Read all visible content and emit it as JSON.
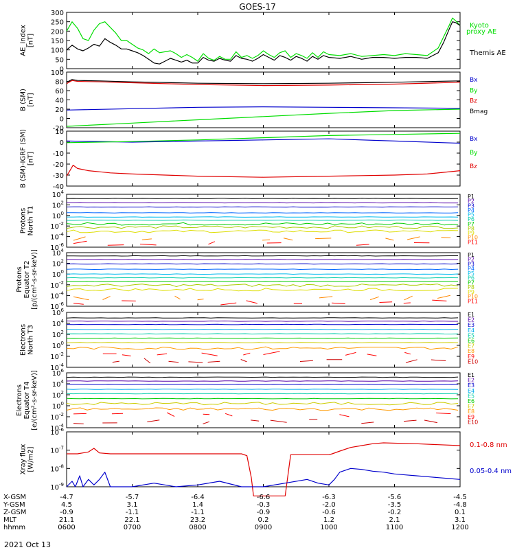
{
  "title": "GOES-17",
  "date": "2021 Oct 13",
  "colors": {
    "black": "#000000",
    "red": "#e00000",
    "green": "#00dd00",
    "blue": "#0000cc",
    "p": [
      "#000000",
      "#5500aa",
      "#0000cc",
      "#0066ff",
      "#00bbee",
      "#00ccaa",
      "#00cc00",
      "#aacc00",
      "#dddd00",
      "#ff8800",
      "#ff0000"
    ],
    "e": [
      "#000000",
      "#5500aa",
      "#0000cc",
      "#00aaee",
      "#00ccaa",
      "#00cc00",
      "#cccc00",
      "#ff9900",
      "#ff0000",
      "#cc0000"
    ]
  },
  "chart_data": [
    {
      "type": "line",
      "ylabel": "AE_index\n[nT]",
      "ylim": [
        0,
        300
      ],
      "yticks": [
        "0",
        "50",
        "100",
        "150",
        "200",
        "250",
        "300"
      ],
      "legend": [
        {
          "text": "Kyoto",
          "color": "green"
        },
        {
          "text": "proxy AE",
          "color": "green"
        },
        {
          "text": "Themis AE",
          "color": "black"
        }
      ],
      "series": [
        {
          "name": "Kyoto proxy AE",
          "color": "green",
          "x": [
            600,
            605,
            610,
            615,
            620,
            625,
            630,
            635,
            640,
            645,
            650,
            655,
            700,
            705,
            710,
            715,
            720,
            725,
            730,
            735,
            740,
            745,
            750,
            755,
            800,
            805,
            810,
            815,
            820,
            825,
            830,
            835,
            840,
            845,
            850,
            855,
            900,
            905,
            910,
            915,
            920,
            925,
            930,
            935,
            940,
            945,
            950,
            955,
            1000,
            1010,
            1020,
            1030,
            1040,
            1050,
            1100,
            1110,
            1120,
            1130,
            1140,
            1145,
            1150,
            1153,
            1156,
            1200
          ],
          "y": [
            200,
            250,
            215,
            160,
            150,
            205,
            240,
            250,
            220,
            190,
            150,
            150,
            130,
            110,
            100,
            80,
            105,
            85,
            90,
            95,
            80,
            60,
            75,
            60,
            40,
            80,
            55,
            45,
            65,
            50,
            50,
            90,
            60,
            70,
            55,
            70,
            95,
            75,
            60,
            85,
            95,
            60,
            80,
            70,
            55,
            85,
            60,
            90,
            75,
            70,
            80,
            65,
            70,
            75,
            70,
            80,
            75,
            70,
            110,
            170,
            230,
            270,
            255,
            230
          ]
        },
        {
          "name": "Themis AE",
          "color": "black",
          "x": [
            600,
            605,
            610,
            615,
            620,
            625,
            630,
            635,
            640,
            645,
            650,
            655,
            700,
            705,
            710,
            715,
            720,
            725,
            730,
            735,
            740,
            745,
            750,
            755,
            800,
            805,
            810,
            815,
            820,
            825,
            830,
            835,
            840,
            845,
            850,
            855,
            900,
            905,
            910,
            915,
            920,
            925,
            930,
            935,
            940,
            945,
            950,
            955,
            1000,
            1010,
            1020,
            1030,
            1040,
            1050,
            1100,
            1110,
            1120,
            1130,
            1140,
            1145,
            1150,
            1153,
            1156,
            1200
          ],
          "y": [
            100,
            125,
            105,
            95,
            110,
            130,
            120,
            160,
            140,
            125,
            105,
            105,
            95,
            85,
            70,
            50,
            30,
            25,
            40,
            55,
            45,
            35,
            45,
            30,
            30,
            60,
            45,
            40,
            55,
            45,
            40,
            70,
            55,
            50,
            40,
            55,
            75,
            60,
            45,
            70,
            60,
            45,
            65,
            55,
            40,
            65,
            50,
            70,
            60,
            55,
            65,
            50,
            60,
            60,
            55,
            60,
            60,
            55,
            85,
            140,
            210,
            250,
            245,
            230
          ]
        }
      ]
    },
    {
      "type": "line",
      "ylabel": "B (SM)\n[nT]",
      "ylim": [
        -20,
        100
      ],
      "yticks": [
        "-20",
        "0",
        "20",
        "40",
        "60",
        "80",
        "100"
      ],
      "legend": [
        {
          "text": "Bx",
          "color": "blue"
        },
        {
          "text": "By",
          "color": "green"
        },
        {
          "text": "Bz",
          "color": "red"
        },
        {
          "text": "Bmag",
          "color": "black"
        }
      ],
      "series": [
        {
          "name": "Bx",
          "color": "blue",
          "x": [
            600,
            700,
            800,
            900,
            1000,
            1100,
            1200
          ],
          "y": [
            18,
            21,
            24,
            25,
            24,
            23,
            22
          ]
        },
        {
          "name": "By",
          "color": "green",
          "x": [
            600,
            700,
            800,
            900,
            1000,
            1100,
            1200
          ],
          "y": [
            -17,
            -10,
            -3,
            4,
            11,
            17,
            20
          ]
        },
        {
          "name": "Bz",
          "color": "red",
          "x": [
            600,
            605,
            610,
            630,
            700,
            800,
            900,
            1000,
            1100,
            1200
          ],
          "y": [
            75,
            82,
            80,
            79,
            77,
            73,
            71,
            72,
            74,
            78
          ]
        },
        {
          "name": "Bmag",
          "color": "black",
          "x": [
            600,
            605,
            610,
            630,
            700,
            800,
            900,
            1000,
            1100,
            1200
          ],
          "y": [
            78,
            84,
            82,
            81,
            79,
            76,
            75,
            76,
            78,
            81
          ]
        }
      ]
    },
    {
      "type": "line",
      "ylabel": "B (SM)-IGRF (SM)\n[nT]",
      "ylim": [
        -40,
        10
      ],
      "yticks": [
        "-40",
        "-30",
        "-20",
        "-10",
        "0",
        "10"
      ],
      "legend": [
        {
          "text": "Bx",
          "color": "blue"
        },
        {
          "text": "By",
          "color": "green"
        },
        {
          "text": "Bz",
          "color": "red"
        }
      ],
      "series": [
        {
          "name": "Bx",
          "color": "blue",
          "x": [
            600,
            700,
            800,
            900,
            1000,
            1100,
            1200
          ],
          "y": [
            1,
            0,
            1,
            2,
            3,
            1,
            -1
          ]
        },
        {
          "name": "By",
          "color": "green",
          "x": [
            600,
            700,
            800,
            900,
            1000,
            1100,
            1200
          ],
          "y": [
            -0.5,
            0.5,
            2,
            4,
            6,
            7,
            8
          ]
        },
        {
          "name": "Bz",
          "color": "red",
          "x": [
            600,
            603,
            606,
            610,
            615,
            620,
            630,
            640,
            700,
            730,
            800,
            830,
            900,
            930,
            1000,
            1030,
            1100,
            1130,
            1200
          ],
          "y": [
            -31,
            -26,
            -21,
            -24,
            -25,
            -26,
            -27,
            -28,
            -29,
            -30,
            -31,
            -31.5,
            -32,
            -31.5,
            -31,
            -30.5,
            -30,
            -29,
            -26
          ]
        }
      ]
    },
    {
      "type": "line",
      "ylabel": "Protons\nNorth T1",
      "log": true,
      "ylim": [
        -6,
        4
      ],
      "yticks": [
        {
          "exp": -6
        },
        {
          "exp": -4
        },
        {
          "exp": -2
        },
        {
          "exp": 0
        },
        {
          "exp": 2
        },
        {
          "exp": 4
        }
      ],
      "legend": [
        "P1",
        "P2",
        "P3",
        "P4",
        "P5",
        "P6",
        "P7",
        "P8",
        "P9",
        "P10",
        "P11"
      ],
      "levels": [
        3.2,
        2.4,
        1.6,
        0.5,
        -0.3,
        -0.9,
        -1.6,
        -2.2,
        -3.0,
        -4.3,
        -5.2
      ]
    },
    {
      "type": "line",
      "ylabel": "Protons\nEquator T2\n[p/(cm²-s-sr-keV)]",
      "log": true,
      "ylim": [
        -6,
        4
      ],
      "yticks": [
        {
          "exp": -6
        },
        {
          "exp": -4
        },
        {
          "exp": -2
        },
        {
          "exp": 0
        },
        {
          "exp": 2
        },
        {
          "exp": 4
        }
      ],
      "legend": [
        "P1",
        "P2",
        "P3",
        "P4",
        "P5",
        "P6",
        "P7",
        "P8",
        "P9",
        "P10",
        "P11"
      ],
      "levels": [
        3.4,
        2.7,
        1.9,
        0.9,
        0.0,
        -0.7,
        -1.4,
        -2.1,
        -2.9,
        -4.4,
        -5.3
      ]
    },
    {
      "type": "line",
      "ylabel": "Electrons\nNorth T3",
      "log": true,
      "ylim": [
        -4,
        6
      ],
      "yticks": [
        {
          "exp": -4
        },
        {
          "exp": -2
        },
        {
          "exp": 0
        },
        {
          "exp": 2
        },
        {
          "exp": 4
        },
        {
          "exp": 6
        }
      ],
      "legend": [
        "E1",
        "E2",
        "E3",
        "E4",
        "E5",
        "E6",
        "E7",
        "E8",
        "E9",
        "E10"
      ],
      "levels": [
        5.0,
        4.4,
        3.8,
        2.9,
        2.1,
        1.3,
        0.5,
        -0.5,
        -1.5,
        -2.8
      ]
    },
    {
      "type": "line",
      "ylabel": "Electrons\nEquator T4\n[e/(cm²-s-sr-keV)]",
      "log": true,
      "ylim": [
        -4,
        6
      ],
      "yticks": [
        {
          "exp": -4
        },
        {
          "exp": -2
        },
        {
          "exp": 0
        },
        {
          "exp": 2
        },
        {
          "exp": 4
        },
        {
          "exp": 6
        }
      ],
      "legend": [
        "E1",
        "E2",
        "E3",
        "E4",
        "E5",
        "E6",
        "E7",
        "E8",
        "E9",
        "E10"
      ],
      "levels": [
        5.2,
        4.5,
        3.9,
        3.0,
        2.2,
        1.3,
        0.4,
        -0.6,
        -1.6,
        -2.9
      ]
    },
    {
      "type": "line",
      "ylabel": "Xray flux\n[W/m2]",
      "log": true,
      "ylim": [
        -9,
        -6
      ],
      "yticks": [
        {
          "exp": -9
        },
        {
          "exp": -8
        },
        {
          "exp": -7
        },
        {
          "exp": -6
        }
      ],
      "legend": [
        {
          "text": "0.1-0.8 nm",
          "color": "red"
        },
        {
          "text": "0.05-0.4 nm",
          "color": "blue"
        }
      ],
      "series": [
        {
          "name": "0.1-0.8 nm",
          "color": "red",
          "x": [
            600,
            610,
            620,
            625,
            630,
            640,
            700,
            720,
            740,
            800,
            820,
            840,
            845,
            849,
            850,
            851,
            920,
            925,
            1000,
            1003,
            1010,
            1020,
            1030,
            1040,
            1050,
            1100,
            1120,
            1140,
            1200
          ],
          "y": [
            -7.2,
            -7.2,
            -7.1,
            -6.9,
            -7.15,
            -7.2,
            -7.2,
            -7.2,
            -7.2,
            -7.2,
            -7.2,
            -7.2,
            -7.3,
            -8.5,
            -9.0,
            -9.5,
            -9.5,
            -7.25,
            -7.25,
            -7.2,
            -7.05,
            -6.85,
            -6.75,
            -6.65,
            -6.6,
            -6.62,
            -6.65,
            -6.7,
            -6.75
          ]
        },
        {
          "name": "0.05-0.4 nm",
          "color": "blue",
          "x": [
            600,
            605,
            608,
            612,
            615,
            620,
            625,
            630,
            635,
            640,
            700,
            720,
            740,
            800,
            820,
            840,
            850,
            900,
            920,
            940,
            950,
            1000,
            1005,
            1010,
            1020,
            1030,
            1040,
            1050,
            1100,
            1110,
            1120,
            1130,
            1140,
            1150,
            1200
          ],
          "y": [
            -9.0,
            -8.7,
            -9.0,
            -8.4,
            -9.0,
            -8.6,
            -8.9,
            -8.6,
            -8.2,
            -9.0,
            -9.0,
            -8.8,
            -9.0,
            -8.9,
            -8.7,
            -9.0,
            -9.0,
            -9.0,
            -8.8,
            -8.6,
            -8.8,
            -8.9,
            -8.6,
            -8.2,
            -8.0,
            -8.05,
            -8.15,
            -8.2,
            -8.3,
            -8.35,
            -8.4,
            -8.45,
            -8.5,
            -8.55,
            -8.6
          ]
        }
      ]
    }
  ],
  "x_axis": {
    "range": [
      600,
      1200
    ],
    "ticks": [
      600,
      700,
      800,
      900,
      1000,
      1100,
      1200
    ],
    "rows": [
      {
        "label": "X-GSM",
        "values": [
          "-4.7",
          "-5.7",
          "-6.4",
          "-6.6",
          "-6.3",
          "-5.6",
          "-4.5"
        ]
      },
      {
        "label": "Y-GSM",
        "values": [
          "4.5",
          "3.1",
          "1.4",
          "-0.3",
          "-2.0",
          "-3.5",
          "-4.8"
        ]
      },
      {
        "label": "Z-GSM",
        "values": [
          "-0.9",
          "-1.1",
          "-1.1",
          "-0.9",
          "-0.6",
          "-0.2",
          "0.1"
        ]
      },
      {
        "label": "MLT",
        "values": [
          "21.1",
          "22.1",
          "23.2",
          "0.2",
          "1.2",
          "2.1",
          "3.1"
        ]
      },
      {
        "label": "hhmm",
        "values": [
          "0600",
          "0700",
          "0800",
          "0900",
          "1000",
          "1100",
          "1200"
        ]
      }
    ]
  }
}
